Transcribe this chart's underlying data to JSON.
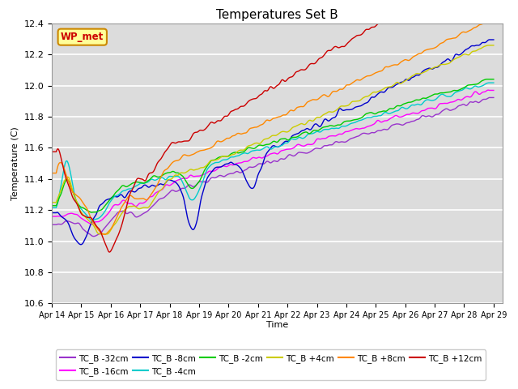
{
  "title": "Temperatures Set B",
  "xlabel": "Time",
  "ylabel": "Temperature (C)",
  "ylim": [
    10.6,
    12.4
  ],
  "background_color": "#dcdcdc",
  "series": [
    {
      "label": "TC_B -32cm",
      "color": "#9933cc"
    },
    {
      "label": "TC_B -16cm",
      "color": "#ff00ff"
    },
    {
      "label": "TC_B -8cm",
      "color": "#0000cc"
    },
    {
      "label": "TC_B -4cm",
      "color": "#00cccc"
    },
    {
      "label": "TC_B -2cm",
      "color": "#00cc00"
    },
    {
      "label": "TC_B +4cm",
      "color": "#cccc00"
    },
    {
      "label": "TC_B +8cm",
      "color": "#ff8800"
    },
    {
      "label": "TC_B +12cm",
      "color": "#cc0000"
    }
  ],
  "wp_met_box_color": "#ffff99",
  "wp_met_border_color": "#cc8800",
  "wp_met_text_color": "#cc0000",
  "xtick_labels": [
    "Apr 14",
    "Apr 15",
    "Apr 16",
    "Apr 17",
    "Apr 18",
    "Apr 19",
    "Apr 20",
    "Apr 21",
    "Apr 22",
    "Apr 23",
    "Apr 24",
    "Apr 25",
    "Apr 26",
    "Apr 27",
    "Apr 28",
    "Apr 29"
  ],
  "yticks": [
    10.6,
    10.8,
    11.0,
    11.2,
    11.4,
    11.6,
    11.8,
    12.0,
    12.2,
    12.4
  ],
  "n_points": 1500,
  "start_day": 14,
  "end_day": 29
}
